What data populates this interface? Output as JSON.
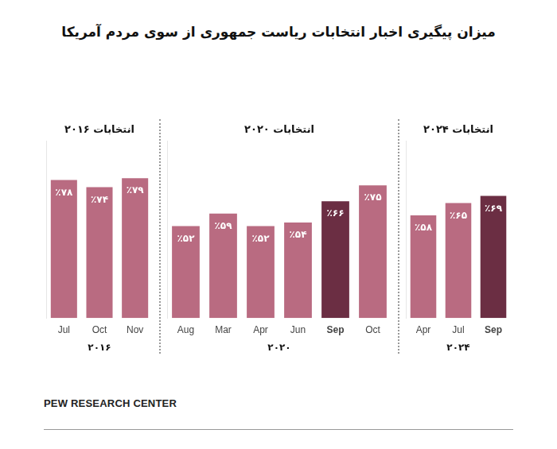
{
  "header": {
    "title": "میزان پیگیری اخبار انتخابات ریاست جمهوری از سوی مردم آمریکا"
  },
  "chart_data": [
    {
      "type": "bar",
      "title": "انتخابات ۲۰۱۶",
      "xlabel": "۲۰۱۶",
      "categories": [
        "Jul",
        "Oct",
        "Nov"
      ],
      "values": [
        78,
        74,
        79
      ],
      "value_labels": [
        "٪۷۸",
        "٪۷۴",
        "٪۷۹"
      ],
      "colors": [
        "#b96b81",
        "#b96b81",
        "#b96b81"
      ],
      "ylim": [
        0,
        100
      ],
      "grid": false,
      "data_labels": true,
      "tick_labels": "x"
    },
    {
      "type": "bar",
      "title": "انتخابات ۲۰۲۰",
      "xlabel": "۲۰۲۰",
      "categories": [
        "Aug",
        "Mar",
        "Apr",
        "Jun",
        "Sep",
        "Oct"
      ],
      "values": [
        52,
        59,
        52,
        54,
        66,
        75
      ],
      "value_labels": [
        "٪۵۲",
        "٪۵۹",
        "٪۵۲",
        "٪۵۴",
        "٪۶۶",
        "٪۷۵"
      ],
      "colors": [
        "#b96b81",
        "#b96b81",
        "#b96b81",
        "#b96b81",
        "#6b2e43",
        "#b96b81"
      ],
      "ylim": [
        0,
        100
      ],
      "grid": false,
      "data_labels": true,
      "tick_labels": "x"
    },
    {
      "type": "bar",
      "title": "انتخابات ۲۰۲۴",
      "xlabel": "۲۰۲۴",
      "categories": [
        "Apr",
        "Jul",
        "Sep"
      ],
      "values": [
        58,
        65,
        69
      ],
      "value_labels": [
        "٪۵۸",
        "٪۶۵",
        "٪۶۹"
      ],
      "colors": [
        "#b96b81",
        "#b96b81",
        "#6b2e43"
      ],
      "ylim": [
        0,
        100
      ],
      "grid": false,
      "data_labels": true,
      "tick_labels": "x"
    }
  ],
  "footer": {
    "source": "PEW RESEARCH CENTER"
  }
}
